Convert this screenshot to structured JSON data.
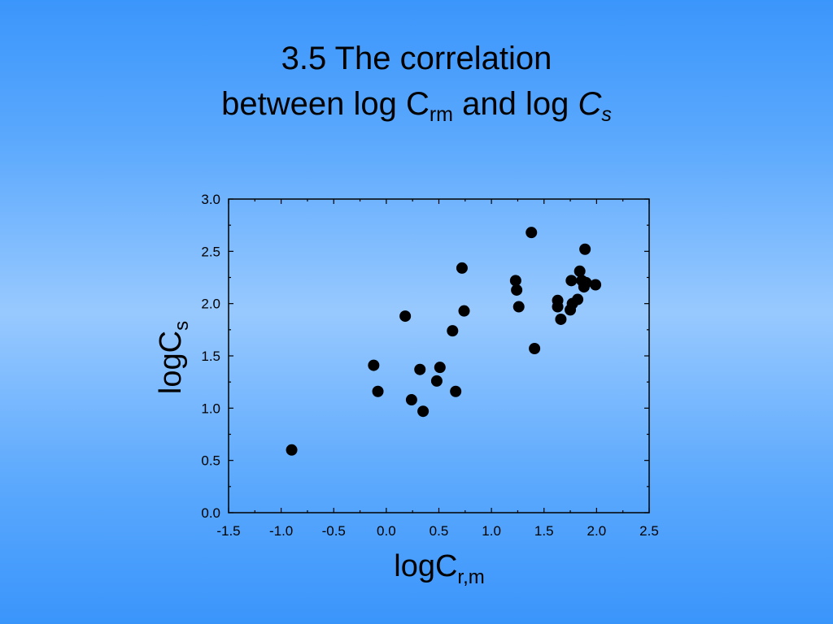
{
  "title": {
    "line1": "3.5 The correlation",
    "line2_prefix": "between log C",
    "line2_sub": "rm",
    "line2_mid": " and log ",
    "line2_var": "C",
    "line2_var_sub": "s"
  },
  "axes": {
    "x_label_main": "logC",
    "x_label_sub": "r,m",
    "y_label_main": "logC",
    "y_label_sub": "s"
  },
  "chart_data": {
    "type": "scatter",
    "xlim": [
      -1.5,
      2.5
    ],
    "ylim": [
      0.0,
      3.0
    ],
    "x_ticks": [
      "-1.5",
      "-1.0",
      "-0.5",
      "0.0",
      "0.5",
      "1.0",
      "1.5",
      "2.0",
      "2.5"
    ],
    "y_ticks": [
      "0.0",
      "0.5",
      "1.0",
      "1.5",
      "2.0",
      "2.5",
      "3.0"
    ],
    "grid": false,
    "marker_color": "#000000",
    "points": [
      {
        "x": -0.9,
        "y": 0.6
      },
      {
        "x": -0.12,
        "y": 1.41
      },
      {
        "x": -0.08,
        "y": 1.16
      },
      {
        "x": 0.18,
        "y": 1.88
      },
      {
        "x": 0.24,
        "y": 1.08
      },
      {
        "x": 0.32,
        "y": 1.37
      },
      {
        "x": 0.35,
        "y": 0.97
      },
      {
        "x": 0.48,
        "y": 1.26
      },
      {
        "x": 0.51,
        "y": 1.39
      },
      {
        "x": 0.63,
        "y": 1.74
      },
      {
        "x": 0.66,
        "y": 1.16
      },
      {
        "x": 0.72,
        "y": 2.34
      },
      {
        "x": 0.74,
        "y": 1.93
      },
      {
        "x": 1.23,
        "y": 2.22
      },
      {
        "x": 1.24,
        "y": 2.13
      },
      {
        "x": 1.26,
        "y": 1.97
      },
      {
        "x": 1.38,
        "y": 2.68
      },
      {
        "x": 1.41,
        "y": 1.57
      },
      {
        "x": 1.63,
        "y": 1.97
      },
      {
        "x": 1.63,
        "y": 2.03
      },
      {
        "x": 1.66,
        "y": 1.85
      },
      {
        "x": 1.75,
        "y": 1.94
      },
      {
        "x": 1.76,
        "y": 2.22
      },
      {
        "x": 1.77,
        "y": 2.0
      },
      {
        "x": 1.82,
        "y": 2.04
      },
      {
        "x": 1.84,
        "y": 2.31
      },
      {
        "x": 1.86,
        "y": 2.22
      },
      {
        "x": 1.88,
        "y": 2.16
      },
      {
        "x": 1.89,
        "y": 2.52
      },
      {
        "x": 1.9,
        "y": 2.2
      },
      {
        "x": 1.99,
        "y": 2.18
      }
    ]
  }
}
